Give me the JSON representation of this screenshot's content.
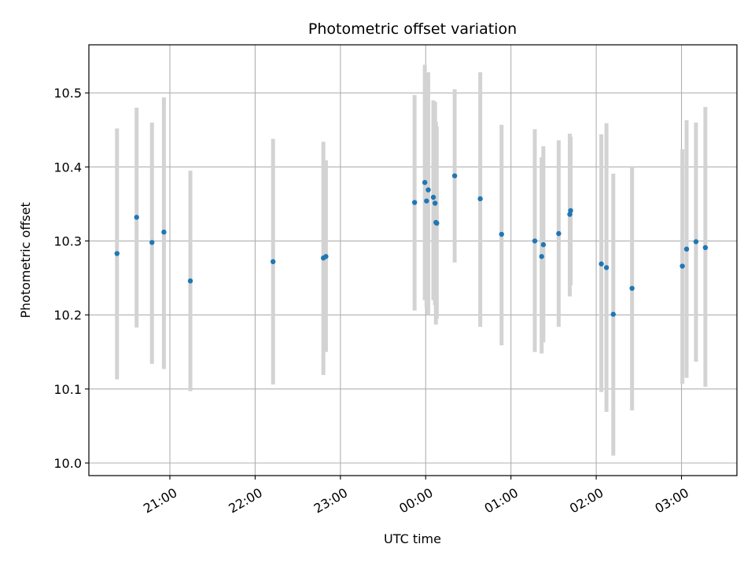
{
  "chart_data": {
    "type": "scatter",
    "title": "Photometric offset variation",
    "xlabel": "UTC time",
    "ylabel": "Photometric offset",
    "x_unit": "hours",
    "xlim": [
      20.05,
      27.65
    ],
    "ylim": [
      9.983,
      10.565
    ],
    "x_ticks": [
      {
        "value": 21,
        "label": "21:00"
      },
      {
        "value": 22,
        "label": "22:00"
      },
      {
        "value": 23,
        "label": "23:00"
      },
      {
        "value": 24,
        "label": "00:00"
      },
      {
        "value": 25,
        "label": "01:00"
      },
      {
        "value": 26,
        "label": "02:00"
      },
      {
        "value": 27,
        "label": "03:00"
      }
    ],
    "y_ticks": [
      {
        "value": 10.0,
        "label": "10.0"
      },
      {
        "value": 10.1,
        "label": "10.1"
      },
      {
        "value": 10.2,
        "label": "10.2"
      },
      {
        "value": 10.3,
        "label": "10.3"
      },
      {
        "value": 10.4,
        "label": "10.4"
      },
      {
        "value": 10.5,
        "label": "10.5"
      }
    ],
    "grid": true,
    "marker_color": "#1f77b4",
    "errorbar_color": "#d3d3d3",
    "points": [
      {
        "x": 20.38,
        "y": 10.283,
        "low": 10.113,
        "high": 10.452
      },
      {
        "x": 20.61,
        "y": 10.332,
        "low": 10.183,
        "high": 10.48
      },
      {
        "x": 20.79,
        "y": 10.298,
        "low": 10.134,
        "high": 10.46
      },
      {
        "x": 20.93,
        "y": 10.312,
        "low": 10.127,
        "high": 10.494
      },
      {
        "x": 21.24,
        "y": 10.246,
        "low": 10.097,
        "high": 10.395
      },
      {
        "x": 22.21,
        "y": 10.272,
        "low": 10.106,
        "high": 10.438
      },
      {
        "x": 22.8,
        "y": 10.277,
        "low": 10.119,
        "high": 10.434
      },
      {
        "x": 22.83,
        "y": 10.279,
        "low": 10.15,
        "high": 10.409
      },
      {
        "x": 23.87,
        "y": 10.352,
        "low": 10.206,
        "high": 10.497
      },
      {
        "x": 23.99,
        "y": 10.379,
        "low": 10.22,
        "high": 10.538
      },
      {
        "x": 24.01,
        "y": 10.354,
        "low": 10.21,
        "high": 10.5
      },
      {
        "x": 24.03,
        "y": 10.369,
        "low": 10.2,
        "high": 10.528
      },
      {
        "x": 24.09,
        "y": 10.359,
        "low": 10.22,
        "high": 10.49
      },
      {
        "x": 24.11,
        "y": 10.351,
        "low": 10.213,
        "high": 10.488
      },
      {
        "x": 24.12,
        "y": 10.325,
        "low": 10.187,
        "high": 10.461
      },
      {
        "x": 24.13,
        "y": 10.324,
        "low": 10.195,
        "high": 10.455
      },
      {
        "x": 24.34,
        "y": 10.388,
        "low": 10.271,
        "high": 10.505
      },
      {
        "x": 24.64,
        "y": 10.357,
        "low": 10.184,
        "high": 10.528
      },
      {
        "x": 24.89,
        "y": 10.309,
        "low": 10.159,
        "high": 10.457
      },
      {
        "x": 25.28,
        "y": 10.3,
        "low": 10.15,
        "high": 10.451
      },
      {
        "x": 25.36,
        "y": 10.279,
        "low": 10.148,
        "high": 10.413
      },
      {
        "x": 25.38,
        "y": 10.295,
        "low": 10.163,
        "high": 10.428
      },
      {
        "x": 25.56,
        "y": 10.31,
        "low": 10.184,
        "high": 10.436
      },
      {
        "x": 25.69,
        "y": 10.336,
        "low": 10.225,
        "high": 10.445
      },
      {
        "x": 25.7,
        "y": 10.341,
        "low": 10.24,
        "high": 10.441
      },
      {
        "x": 26.06,
        "y": 10.269,
        "low": 10.096,
        "high": 10.444
      },
      {
        "x": 26.12,
        "y": 10.264,
        "low": 10.069,
        "high": 10.459
      },
      {
        "x": 26.2,
        "y": 10.201,
        "low": 10.01,
        "high": 10.391
      },
      {
        "x": 26.42,
        "y": 10.236,
        "low": 10.071,
        "high": 10.401
      },
      {
        "x": 27.01,
        "y": 10.266,
        "low": 10.107,
        "high": 10.424
      },
      {
        "x": 27.06,
        "y": 10.289,
        "low": 10.115,
        "high": 10.463
      },
      {
        "x": 27.17,
        "y": 10.299,
        "low": 10.137,
        "high": 10.46
      },
      {
        "x": 27.28,
        "y": 10.291,
        "low": 10.103,
        "high": 10.481
      }
    ]
  }
}
